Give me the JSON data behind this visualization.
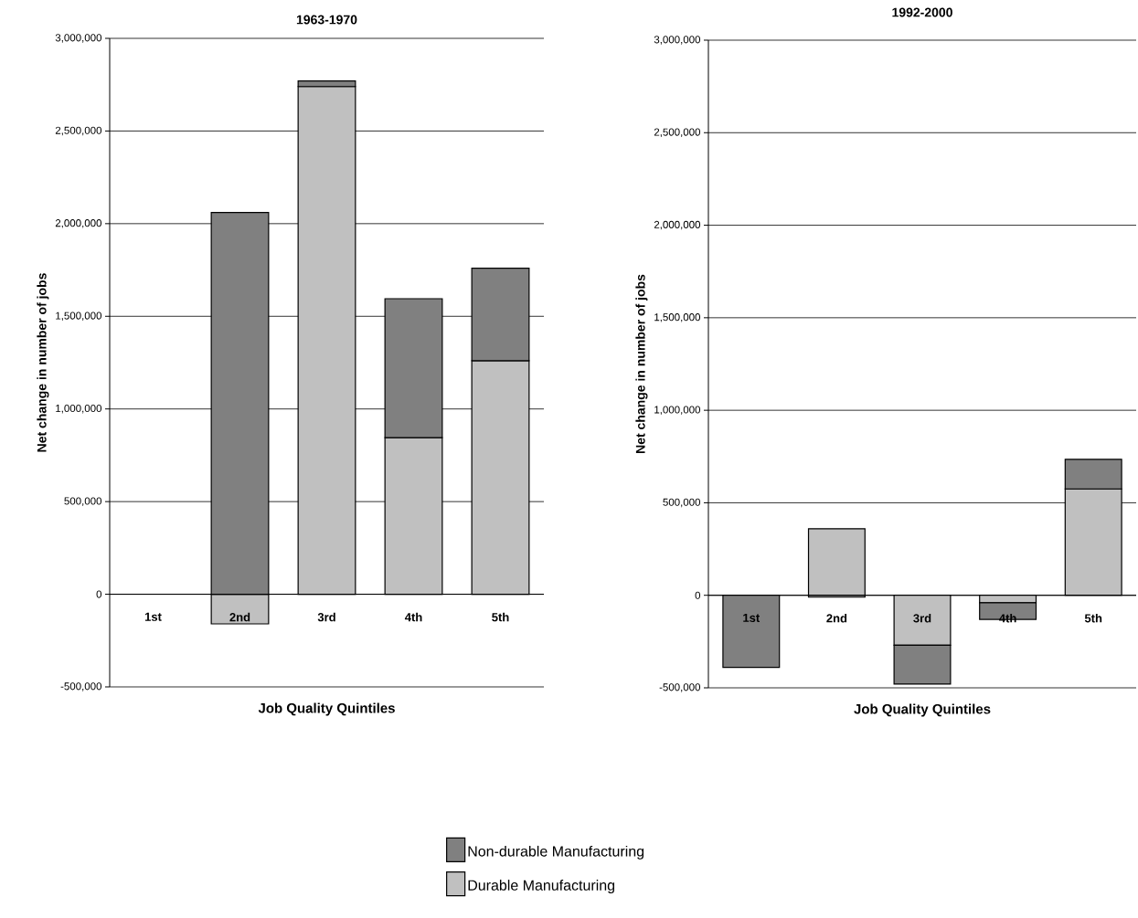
{
  "chart_data": [
    {
      "type": "bar",
      "stacked": true,
      "title": "1963-1970",
      "xlabel": "Job Quality Quintiles",
      "ylabel": "Net change in number of jobs",
      "categories": [
        "1st",
        "2nd",
        "3rd",
        "4th",
        "5th"
      ],
      "series": [
        {
          "color": "#c0c0c0",
          "values": [
            0,
            -160000,
            2740000,
            845000,
            1260000
          ]
        },
        {
          "color": "#808080",
          "values": [
            0,
            2060000,
            30000,
            750000,
            500000
          ]
        }
      ],
      "ylim": [
        -500000,
        3000000
      ],
      "yticks": [
        {
          "value": -500000,
          "label": "-500,000"
        },
        0,
        {
          "value": 500000,
          "label": "500,000"
        },
        {
          "value": 1000000,
          "label": "1,000,000"
        },
        {
          "value": 1500000,
          "label": "1,500,000"
        },
        {
          "value": 2000000,
          "label": "2,000,000"
        },
        {
          "value": 2500000,
          "label": "2,500,000"
        },
        {
          "value": 3000000,
          "label": "3,000,000"
        }
      ],
      "grid": "y"
    },
    {
      "type": "bar",
      "stacked": true,
      "title": "1992-2000",
      "xlabel": "Job Quality Quintiles",
      "ylabel": "Net change in number of jobs",
      "categories": [
        "1st",
        "2nd",
        "3rd",
        "4th",
        "5th"
      ],
      "series": [
        {
          "name": "Durable Manufacturing",
          "color": "#c0c0c0",
          "values": [
            0,
            360000,
            -270000,
            -40000,
            575000
          ]
        },
        {
          "name": "Non-durable Manufacturing",
          "color": "#808080",
          "values": [
            -390000,
            -10000,
            -210000,
            -90000,
            160000
          ]
        }
      ],
      "ylim": [
        -500000,
        3000000
      ],
      "yticks": [
        {
          "value": -500000,
          "label": "-500,000"
        },
        0,
        {
          "value": 500000,
          "label": "500,000"
        },
        {
          "value": 1000000,
          "label": "1,000,000"
        },
        {
          "value": 1500000,
          "label": "1,500,000"
        },
        {
          "value": 2000000,
          "label": "2,000,000"
        },
        {
          "value": 2500000,
          "label": "2,500,000"
        },
        {
          "value": 3000000,
          "label": "3,000,000"
        }
      ],
      "grid": "y",
      "legend": "bottom"
    }
  ]
}
